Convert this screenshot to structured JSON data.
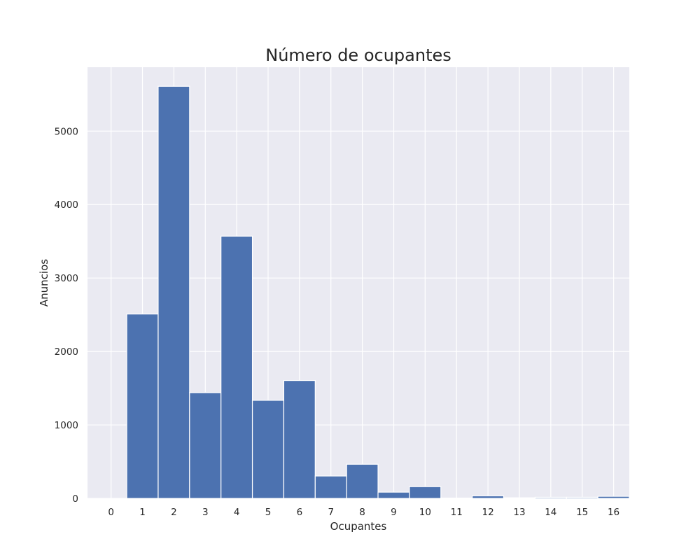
{
  "chart_data": {
    "type": "bar",
    "title": "Número de ocupantes",
    "xlabel": "Ocupantes",
    "ylabel": "Anuncios",
    "categories": [
      "0",
      "1",
      "2",
      "3",
      "4",
      "5",
      "6",
      "7",
      "8",
      "9",
      "10",
      "11",
      "12",
      "13",
      "14",
      "15",
      "16"
    ],
    "values": [
      0,
      2510,
      5610,
      1440,
      3570,
      1335,
      1605,
      305,
      465,
      85,
      160,
      5,
      35,
      8,
      15,
      15,
      28
    ],
    "xlim": [
      -0.75,
      16.5
    ],
    "ylim": [
      0,
      5870
    ],
    "yticks": [
      0,
      1000,
      2000,
      3000,
      4000,
      5000
    ],
    "grid": true,
    "legend": "none",
    "colors": {
      "bar": "#4c72b0",
      "bar_edge": "#ffffff",
      "plot_background": "#eaeaf2",
      "grid": "#ffffff",
      "text": "#262626"
    }
  }
}
